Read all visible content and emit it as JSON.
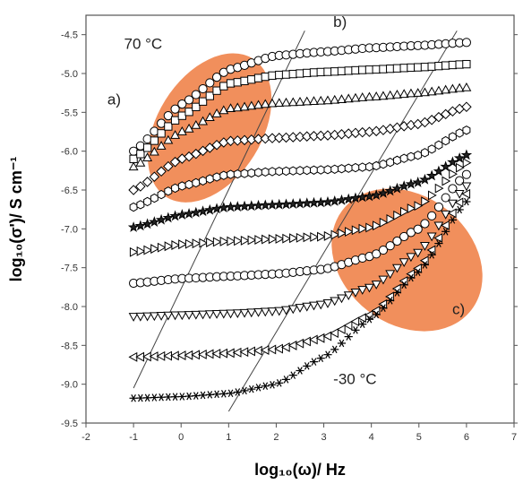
{
  "chart_data": {
    "type": "scatter",
    "xlabel": "log₁₀(ω)/ Hz",
    "ylabel": "log₁₀(σ')/ S cm⁻¹",
    "xlim": [
      -2,
      7
    ],
    "ylim": [
      -9.5,
      -4.25
    ],
    "xticks": [
      -2,
      -1,
      0,
      1,
      2,
      3,
      4,
      5,
      6,
      7
    ],
    "xtick_labels": [
      "-2",
      "-1",
      "0",
      "1",
      "2",
      "3",
      "4",
      "5",
      "6",
      "7"
    ],
    "yticks": [
      -9.5,
      -9.0,
      -8.5,
      -8.0,
      -7.5,
      -7.0,
      -6.5,
      -6.0,
      -5.5,
      -5.0,
      -4.5
    ],
    "ytick_labels": [
      "-9.5",
      "-9.0",
      "-8.5",
      "-8.0",
      "-7.5",
      "-7.0",
      "-6.5",
      "-6.0",
      "-5.5",
      "-5.0",
      "-4.5"
    ],
    "grid": false,
    "series": [
      {
        "marker": "circle",
        "color": "#000000",
        "sigma_dc": -4.65,
        "crossover": 0.0,
        "plateau_x": [
          -1,
          6
        ],
        "x": [
          -1,
          0,
          1,
          2,
          3,
          4,
          5,
          6
        ],
        "y": [
          -6.0,
          -5.4,
          -4.95,
          -4.77,
          -4.72,
          -4.67,
          -4.64,
          -4.6
        ]
      },
      {
        "marker": "square",
        "color": "#000000",
        "sigma_dc": -4.93,
        "crossover": -0.2,
        "x": [
          -1,
          0,
          1,
          2,
          3,
          4,
          5,
          6
        ],
        "y": [
          -6.1,
          -5.55,
          -5.13,
          -5.02,
          -4.98,
          -4.95,
          -4.92,
          -4.88
        ]
      },
      {
        "marker": "triangle-up",
        "color": "#000000",
        "sigma_dc": -5.3,
        "crossover": -0.1,
        "x": [
          -1,
          0,
          1,
          2,
          3,
          4,
          5,
          6
        ],
        "y": [
          -6.2,
          -5.75,
          -5.45,
          -5.38,
          -5.35,
          -5.3,
          -5.25,
          -5.18
        ]
      },
      {
        "marker": "diamond",
        "color": "#000000",
        "sigma_dc": -5.88,
        "crossover": 0.0,
        "x": [
          -1,
          0,
          1,
          2,
          3,
          4,
          5,
          6
        ],
        "y": [
          -6.5,
          -6.1,
          -5.87,
          -5.83,
          -5.8,
          -5.75,
          -5.65,
          -5.43
        ]
      },
      {
        "marker": "hexagon",
        "color": "#000000",
        "sigma_dc": -6.28,
        "crossover": 0.0,
        "x": [
          -1,
          0,
          1,
          2,
          3,
          4,
          5,
          6
        ],
        "y": [
          -6.72,
          -6.45,
          -6.3,
          -6.26,
          -6.24,
          -6.2,
          -6.05,
          -5.73
        ]
      },
      {
        "marker": "star",
        "color": "#000000",
        "sigma_dc": -6.68,
        "crossover": 0.0,
        "x": [
          -1,
          0,
          1,
          2,
          3,
          4,
          5,
          6
        ],
        "y": [
          -6.98,
          -6.82,
          -6.72,
          -6.69,
          -6.66,
          -6.58,
          -6.4,
          -6.05
        ]
      },
      {
        "marker": "triangle-right",
        "color": "#000000",
        "sigma_dc": -7.13,
        "crossover": 0.0,
        "x": [
          -1,
          0,
          1,
          2,
          3,
          4,
          5,
          6
        ],
        "y": [
          -7.3,
          -7.2,
          -7.16,
          -7.13,
          -7.1,
          -6.98,
          -6.7,
          -6.15
        ]
      },
      {
        "marker": "circle",
        "color": "#000000",
        "sigma_dc": -7.6,
        "crossover": 0.0,
        "x": [
          -1,
          0,
          1,
          2,
          3,
          4,
          5,
          6
        ],
        "y": [
          -7.7,
          -7.64,
          -7.61,
          -7.58,
          -7.52,
          -7.35,
          -7.0,
          -6.3
        ]
      },
      {
        "marker": "triangle-down",
        "color": "#000000",
        "sigma_dc": -8.1,
        "crossover": 0.0,
        "x": [
          -1,
          0,
          1,
          2,
          3,
          4,
          5,
          6
        ],
        "y": [
          -8.13,
          -8.11,
          -8.09,
          -8.06,
          -7.97,
          -7.75,
          -7.3,
          -6.45
        ]
      },
      {
        "marker": "triangle-left",
        "color": "#000000",
        "sigma_dc": -8.62,
        "crossover": 0.0,
        "x": [
          -1,
          0,
          1,
          2,
          3,
          4,
          5,
          6
        ],
        "y": [
          -8.65,
          -8.63,
          -8.6,
          -8.55,
          -8.4,
          -8.1,
          -7.5,
          -6.55
        ]
      },
      {
        "marker": "asterisk",
        "color": "#000000",
        "sigma_dc": -9.17,
        "crossover": 0.0,
        "x": [
          -1,
          0,
          1,
          2,
          3,
          4,
          5,
          6
        ],
        "y": [
          -9.18,
          -9.16,
          -9.12,
          -9.0,
          -8.65,
          -8.15,
          -7.55,
          -6.65
        ]
      }
    ],
    "guide_lines": [
      {
        "from": [
          -1.0,
          -9.05
        ],
        "to": [
          2.6,
          -4.45
        ]
      },
      {
        "from": [
          1.0,
          -9.35
        ],
        "to": [
          5.8,
          -4.45
        ]
      }
    ],
    "highlight_ellipses": [
      {
        "center": [
          0.6,
          -5.7
        ],
        "rx_data": 1.1,
        "ry_data": 1.05,
        "rotate": 32,
        "color": "#f0834a"
      },
      {
        "center": [
          4.75,
          -7.4
        ],
        "rx_data": 1.35,
        "ry_data": 1.05,
        "rotate": -52,
        "color": "#f0834a"
      }
    ],
    "annotations": [
      {
        "id": "label_a",
        "text": "a)",
        "x": -1.55,
        "y": -5.4
      },
      {
        "id": "label_b",
        "text": "b)",
        "x": 3.2,
        "y": -4.4
      },
      {
        "id": "label_c",
        "text": "c)",
        "x": 5.7,
        "y": -8.1
      },
      {
        "id": "label_hot",
        "text": "70 °C",
        "x": -1.2,
        "y": -4.68
      },
      {
        "id": "label_cold",
        "text": "-30 °C",
        "x": 3.2,
        "y": -9.0
      }
    ]
  }
}
